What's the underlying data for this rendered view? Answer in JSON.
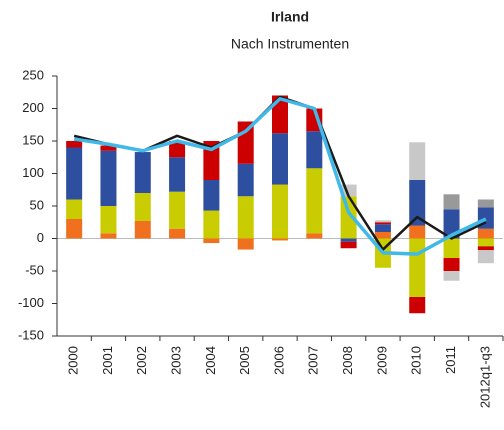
{
  "chart_data": {
    "type": "bar",
    "title": "Irland",
    "subtitle": "Nach Instrumenten",
    "categories": [
      "2000",
      "2001",
      "2002",
      "2003",
      "2004",
      "2005",
      "2006",
      "2007",
      "2008",
      "2009",
      "2010",
      "2011",
      "2012q1-q3"
    ],
    "ylim": [
      -150,
      250
    ],
    "yticks": [
      -150,
      -100,
      -50,
      0,
      50,
      100,
      150,
      200,
      250
    ],
    "series": [
      {
        "type": "bar",
        "color": "#f07020",
        "values": [
          30,
          8,
          27,
          15,
          -7,
          -17,
          -3,
          8,
          0,
          10,
          20,
          0,
          15
        ]
      },
      {
        "type": "bar",
        "color": "#c8cc00",
        "values": [
          30,
          42,
          43,
          57,
          43,
          65,
          83,
          100,
          65,
          -45,
          -90,
          -30,
          -12
        ]
      },
      {
        "type": "bar",
        "color": "#2e4ea0",
        "values": [
          80,
          85,
          63,
          53,
          47,
          50,
          79,
          57,
          -5,
          12,
          70,
          45,
          33
        ]
      },
      {
        "type": "bar",
        "color": "#cc0000",
        "values": [
          10,
          8,
          0,
          25,
          60,
          65,
          58,
          35,
          -10,
          3,
          -25,
          -20,
          -6
        ]
      },
      {
        "type": "bar",
        "color": "#c8c8c8",
        "values": [
          0,
          0,
          0,
          0,
          0,
          0,
          0,
          0,
          18,
          3,
          58,
          -15,
          -20
        ]
      },
      {
        "type": "bar",
        "color": "#999999",
        "values": [
          0,
          0,
          0,
          0,
          0,
          0,
          0,
          0,
          0,
          0,
          0,
          23,
          12
        ]
      },
      {
        "type": "line",
        "color": "#1a1a1a",
        "values": [
          158,
          145,
          135,
          158,
          140,
          165,
          218,
          200,
          65,
          -17,
          33,
          0,
          25
        ]
      },
      {
        "type": "line",
        "color": "#40b8e8",
        "values": [
          153,
          145,
          135,
          150,
          137,
          165,
          215,
          200,
          40,
          -22,
          -24,
          5,
          30
        ]
      }
    ]
  }
}
